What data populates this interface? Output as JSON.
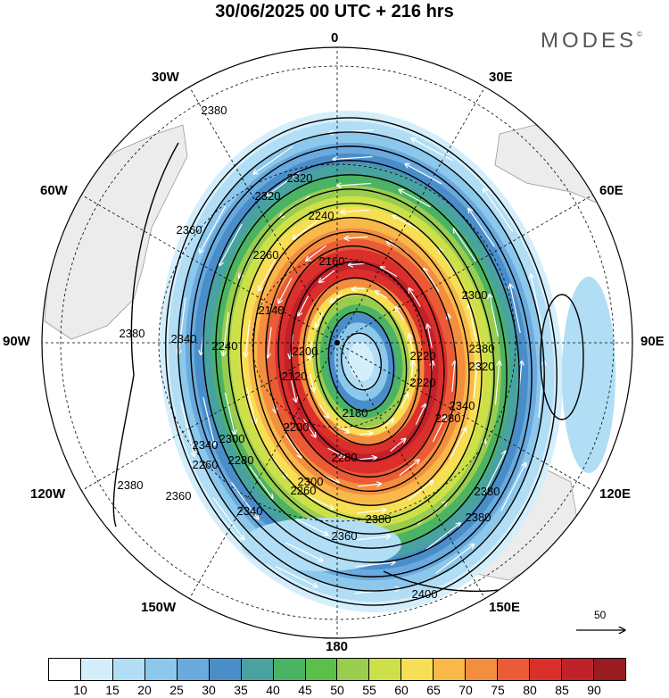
{
  "title": "30/06/2025  00 UTC  + 216 hrs",
  "brand": "MODES",
  "brand_mark": "©",
  "longitude_labels": {
    "n0": "0",
    "n30e": "30E",
    "n60e": "60E",
    "n90e": "90E",
    "n120e": "120E",
    "n150e": "150E",
    "n180": "180",
    "n150w": "150W",
    "n120w": "120W",
    "n90w": "90W",
    "n60w": "60W",
    "n30w": "30W"
  },
  "contour_labels": [
    "2380",
    "2360",
    "2320",
    "2320",
    "2240",
    "2260",
    "2160",
    "2300",
    "2380",
    "2340",
    "2240",
    "2140",
    "2120",
    "2200",
    "2180",
    "2220",
    "2220",
    "2300",
    "2340",
    "2320",
    "2280",
    "2280",
    "2200",
    "2260",
    "2260",
    "2300",
    "2340",
    "2360",
    "2380",
    "2380",
    "2400",
    "2380",
    "2380",
    "2380",
    "2360",
    "2340",
    "2280"
  ],
  "colorbar": {
    "colors": [
      "#ffffff",
      "#d4effb",
      "#b1def5",
      "#8cc8ec",
      "#6aaade",
      "#4a8ec9",
      "#48a3a0",
      "#4bb364",
      "#5bbf49",
      "#99cd4f",
      "#cde04a",
      "#f7df55",
      "#f9b84a",
      "#f48e3f",
      "#ea5b36",
      "#db2f2c",
      "#c1212a",
      "#9b1b22"
    ],
    "ticks": [
      "10",
      "15",
      "20",
      "25",
      "30",
      "35",
      "40",
      "45",
      "50",
      "55",
      "60",
      "65",
      "70",
      "75",
      "80",
      "85",
      "90"
    ]
  },
  "reference_vector": {
    "label": "50"
  }
}
